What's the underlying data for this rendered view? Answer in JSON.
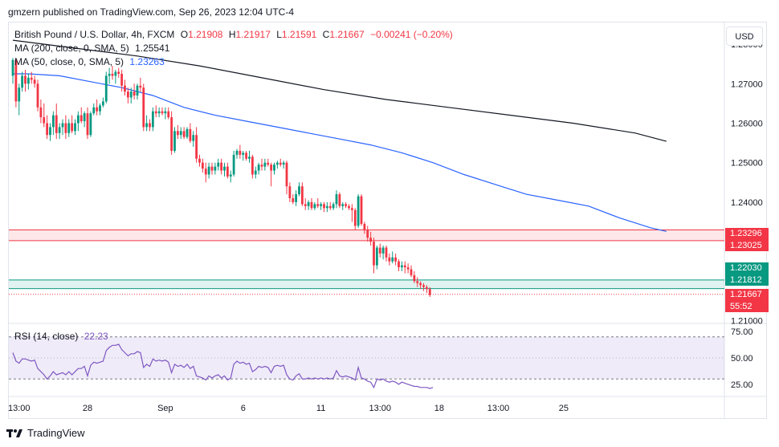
{
  "header": {
    "publisher": "gmzern published on TradingView.com, Sep 26, 2023 12:04 UTC-4"
  },
  "legend": {
    "symbol": "British Pound / U.S. Dollar, 4h, FXCM",
    "o_label": "O",
    "o_value": "1.21908",
    "h_label": "H",
    "h_value": "1.21917",
    "l_label": "L",
    "l_value": "1.21591",
    "c_label": "C",
    "c_value": "1.21667",
    "change": "−0.00241 (−0.20%)",
    "ma200_label": "MA (200, close, 0, SMA, 5)",
    "ma200_value": "1.25541",
    "ma50_label": "MA (50, close, 0, SMA, 5)",
    "ma50_value": "1.23263",
    "rsi_label": "RSI (14, close)",
    "rsi_value": "22.23"
  },
  "toolbar": {
    "currency": "USD"
  },
  "price_tags": {
    "zone_top_upper": "1.23296",
    "zone_top_lower": "1.23025",
    "zone_bottom_upper": "1.22030",
    "zone_bottom_lower": "1.21812",
    "last_price": "1.21667",
    "countdown": "55:52"
  },
  "footer": {
    "brand": "TradingView"
  },
  "colors": {
    "up": "#089981",
    "down": "#f23645",
    "ma200": "#131722",
    "ma50": "#2962ff",
    "rsi": "#7e57c2",
    "rsi_band": "#7e57c2",
    "zone_red": "#f23645",
    "zone_green": "#089981"
  },
  "chart_data": [
    {
      "type": "candlestick",
      "title": "British Pound / U.S. Dollar, 4h, FXCM",
      "y_ticks": [
        "1.28000",
        "1.27000",
        "1.26000",
        "1.25000",
        "1.24000",
        "1.21000"
      ],
      "y_tick_values": [
        1.28,
        1.27,
        1.26,
        1.25,
        1.24,
        1.21
      ],
      "ylim": [
        1.2095,
        1.2855
      ],
      "x_ticks": [
        "13:00",
        "28",
        "Sep",
        "6",
        "11",
        "13:00",
        "18",
        "13:00",
        "25"
      ],
      "x_tick_index": [
        2,
        24,
        49,
        74,
        99,
        118,
        137,
        156,
        177
      ],
      "ohlc": [
        [
          1.272,
          1.2765,
          1.27,
          1.276
        ],
        [
          1.276,
          1.2765,
          1.264,
          1.2655
        ],
        [
          1.2655,
          1.27,
          1.262,
          1.269
        ],
        [
          1.269,
          1.273,
          1.268,
          1.272
        ],
        [
          1.272,
          1.2735,
          1.268,
          1.27
        ],
        [
          1.27,
          1.2725,
          1.2685,
          1.2715
        ],
        [
          1.2715,
          1.273,
          1.27,
          1.271
        ],
        [
          1.271,
          1.272,
          1.269,
          1.27
        ],
        [
          1.27,
          1.271,
          1.263,
          1.264
        ],
        [
          1.264,
          1.266,
          1.26,
          1.2615
        ],
        [
          1.2615,
          1.265,
          1.259,
          1.26
        ],
        [
          1.26,
          1.262,
          1.256,
          1.257
        ],
        [
          1.257,
          1.26,
          1.2555,
          1.259
        ],
        [
          1.259,
          1.263,
          1.257,
          1.262
        ],
        [
          1.262,
          1.265,
          1.256,
          1.2575
        ],
        [
          1.2575,
          1.26,
          1.256,
          1.259
        ],
        [
          1.259,
          1.261,
          1.257,
          1.26
        ],
        [
          1.26,
          1.262,
          1.256,
          1.2575
        ],
        [
          1.2575,
          1.261,
          1.2565,
          1.26
        ],
        [
          1.26,
          1.262,
          1.2575,
          1.258
        ],
        [
          1.258,
          1.261,
          1.257,
          1.26
        ],
        [
          1.26,
          1.263,
          1.258,
          1.262
        ],
        [
          1.262,
          1.264,
          1.26,
          1.2605
        ],
        [
          1.2605,
          1.263,
          1.259,
          1.2625
        ],
        [
          1.2625,
          1.264,
          1.256,
          1.257
        ],
        [
          1.257,
          1.263,
          1.2565,
          1.2625
        ],
        [
          1.2625,
          1.265,
          1.262,
          1.264
        ],
        [
          1.264,
          1.266,
          1.262,
          1.263
        ],
        [
          1.263,
          1.265,
          1.262,
          1.2645
        ],
        [
          1.2645,
          1.2665,
          1.264,
          1.2655
        ],
        [
          1.2655,
          1.273,
          1.265,
          1.272
        ],
        [
          1.272,
          1.274,
          1.27,
          1.2725
        ],
        [
          1.2725,
          1.2745,
          1.271,
          1.272
        ],
        [
          1.272,
          1.2735,
          1.27,
          1.273
        ],
        [
          1.273,
          1.274,
          1.2715,
          1.2725
        ],
        [
          1.2725,
          1.2735,
          1.268,
          1.2695
        ],
        [
          1.2695,
          1.271,
          1.267,
          1.268
        ],
        [
          1.268,
          1.269,
          1.265,
          1.2665
        ],
        [
          1.2665,
          1.269,
          1.265,
          1.268
        ],
        [
          1.268,
          1.27,
          1.266,
          1.267
        ],
        [
          1.267,
          1.27,
          1.266,
          1.2695
        ],
        [
          1.2695,
          1.2715,
          1.268,
          1.269
        ],
        [
          1.269,
          1.27,
          1.258,
          1.259
        ],
        [
          1.259,
          1.262,
          1.258,
          1.26
        ],
        [
          1.26,
          1.261,
          1.258,
          1.259
        ],
        [
          1.259,
          1.264,
          1.258,
          1.263
        ],
        [
          1.263,
          1.2645,
          1.2615,
          1.2625
        ],
        [
          1.2625,
          1.264,
          1.2615,
          1.263
        ],
        [
          1.263,
          1.264,
          1.262,
          1.2625
        ],
        [
          1.2625,
          1.264,
          1.261,
          1.263
        ],
        [
          1.263,
          1.264,
          1.261,
          1.2615
        ],
        [
          1.2615,
          1.263,
          1.252,
          1.253
        ],
        [
          1.253,
          1.259,
          1.2525,
          1.258
        ],
        [
          1.258,
          1.2595,
          1.256,
          1.257
        ],
        [
          1.257,
          1.259,
          1.256,
          1.258
        ],
        [
          1.258,
          1.259,
          1.256,
          1.2565
        ],
        [
          1.2565,
          1.259,
          1.256,
          1.2585
        ],
        [
          1.2585,
          1.26,
          1.255,
          1.2555
        ],
        [
          1.2555,
          1.258,
          1.254,
          1.257
        ],
        [
          1.257,
          1.259,
          1.25,
          1.251
        ],
        [
          1.251,
          1.252,
          1.249,
          1.25
        ],
        [
          1.25,
          1.251,
          1.2475,
          1.2485
        ],
        [
          1.2485,
          1.25,
          1.245,
          1.247
        ],
        [
          1.247,
          1.25,
          1.246,
          1.249
        ],
        [
          1.249,
          1.25,
          1.247,
          1.248
        ],
        [
          1.248,
          1.25,
          1.247,
          1.249
        ],
        [
          1.249,
          1.251,
          1.248,
          1.25
        ],
        [
          1.25,
          1.251,
          1.247,
          1.248
        ],
        [
          1.248,
          1.25,
          1.2465,
          1.249
        ],
        [
          1.249,
          1.25,
          1.246,
          1.2465
        ],
        [
          1.2465,
          1.248,
          1.245,
          1.247
        ],
        [
          1.247,
          1.253,
          1.2465,
          1.252
        ],
        [
          1.252,
          1.2535,
          1.251,
          1.253
        ],
        [
          1.253,
          1.2545,
          1.251,
          1.252
        ],
        [
          1.252,
          1.253,
          1.2505,
          1.2525
        ],
        [
          1.2525,
          1.253,
          1.2505,
          1.251
        ],
        [
          1.251,
          1.253,
          1.25,
          1.2515
        ],
        [
          1.2515,
          1.252,
          1.246,
          1.247
        ],
        [
          1.247,
          1.249,
          1.246,
          1.248
        ],
        [
          1.248,
          1.25,
          1.247,
          1.2495
        ],
        [
          1.2495,
          1.251,
          1.248,
          1.249
        ],
        [
          1.249,
          1.251,
          1.248,
          1.25
        ],
        [
          1.25,
          1.251,
          1.249,
          1.2495
        ],
        [
          1.2495,
          1.25,
          1.244,
          1.248
        ],
        [
          1.248,
          1.25,
          1.247,
          1.2495
        ],
        [
          1.2495,
          1.2505,
          1.2485,
          1.25
        ],
        [
          1.25,
          1.251,
          1.249,
          1.2495
        ],
        [
          1.2495,
          1.2505,
          1.2485,
          1.25
        ],
        [
          1.25,
          1.2505,
          1.242,
          1.244
        ],
        [
          1.244,
          1.245,
          1.24,
          1.241
        ],
        [
          1.241,
          1.242,
          1.2395,
          1.24
        ],
        [
          1.24,
          1.243,
          1.239,
          1.242
        ],
        [
          1.242,
          1.245,
          1.2415,
          1.244
        ],
        [
          1.244,
          1.245,
          1.239,
          1.2395
        ],
        [
          1.2395,
          1.241,
          1.238,
          1.239
        ],
        [
          1.239,
          1.2405,
          1.238,
          1.24
        ],
        [
          1.24,
          1.241,
          1.238,
          1.2385
        ],
        [
          1.2385,
          1.24,
          1.238,
          1.2395
        ],
        [
          1.2395,
          1.241,
          1.2385,
          1.239
        ],
        [
          1.239,
          1.24,
          1.238,
          1.2395
        ],
        [
          1.2395,
          1.24,
          1.2375,
          1.2385
        ],
        [
          1.2385,
          1.24,
          1.2375,
          1.239
        ],
        [
          1.239,
          1.24,
          1.238,
          1.2385
        ],
        [
          1.2385,
          1.24,
          1.238,
          1.2395
        ],
        [
          1.2395,
          1.243,
          1.2385,
          1.242
        ],
        [
          1.242,
          1.2425,
          1.2385,
          1.239
        ],
        [
          1.239,
          1.24,
          1.238,
          1.2395
        ],
        [
          1.2395,
          1.24,
          1.2385,
          1.239
        ],
        [
          1.239,
          1.2395,
          1.238,
          1.2385
        ],
        [
          1.2385,
          1.2395,
          1.235,
          1.238
        ],
        [
          1.238,
          1.2385,
          1.233,
          1.234
        ],
        [
          1.234,
          1.242,
          1.2335,
          1.2415
        ],
        [
          1.2415,
          1.242,
          1.234,
          1.2345
        ],
        [
          1.2345,
          1.235,
          1.232,
          1.233
        ],
        [
          1.233,
          1.234,
          1.23,
          1.231
        ],
        [
          1.231,
          1.2325,
          1.229,
          1.23
        ],
        [
          1.23,
          1.231,
          1.222,
          1.224
        ],
        [
          1.224,
          1.229,
          1.223,
          1.2285
        ],
        [
          1.2285,
          1.2295,
          1.226,
          1.227
        ],
        [
          1.227,
          1.229,
          1.2255,
          1.2285
        ],
        [
          1.2285,
          1.229,
          1.225,
          1.226
        ],
        [
          1.226,
          1.227,
          1.224,
          1.225
        ],
        [
          1.225,
          1.2275,
          1.2245,
          1.226
        ],
        [
          1.226,
          1.227,
          1.224,
          1.225
        ],
        [
          1.225,
          1.2255,
          1.2225,
          1.2235
        ],
        [
          1.2235,
          1.225,
          1.2225,
          1.224
        ],
        [
          1.224,
          1.225,
          1.222,
          1.2235
        ],
        [
          1.2235,
          1.2245,
          1.222,
          1.223
        ],
        [
          1.223,
          1.224,
          1.221,
          1.2215
        ],
        [
          1.2215,
          1.2225,
          1.2195,
          1.22
        ],
        [
          1.22,
          1.221,
          1.2185,
          1.2195
        ],
        [
          1.2195,
          1.22,
          1.218,
          1.219
        ],
        [
          1.219,
          1.2195,
          1.2175,
          1.2185
        ],
        [
          1.2185,
          1.219,
          1.217,
          1.218
        ],
        [
          1.218,
          1.2185,
          1.216,
          1.2165
        ]
      ],
      "ma200": [
        [
          0,
          1.281
        ],
        [
          20,
          1.279
        ],
        [
          40,
          1.277
        ],
        [
          60,
          1.2745
        ],
        [
          80,
          1.2715
        ],
        [
          100,
          1.2685
        ],
        [
          120,
          1.266
        ],
        [
          140,
          1.264
        ],
        [
          160,
          1.262
        ],
        [
          180,
          1.26
        ],
        [
          200,
          1.2575
        ],
        [
          210,
          1.2554
        ]
      ],
      "ma50": [
        [
          0,
          1.2725
        ],
        [
          5,
          1.2725
        ],
        [
          15,
          1.272
        ],
        [
          25,
          1.2705
        ],
        [
          35,
          1.269
        ],
        [
          45,
          1.267
        ],
        [
          55,
          1.264
        ],
        [
          65,
          1.262
        ],
        [
          75,
          1.2605
        ],
        [
          85,
          1.259
        ],
        [
          95,
          1.2575
        ],
        [
          105,
          1.256
        ],
        [
          115,
          1.2545
        ],
        [
          125,
          1.2525
        ],
        [
          135,
          1.25
        ],
        [
          145,
          1.247
        ],
        [
          155,
          1.2445
        ],
        [
          165,
          1.242
        ],
        [
          175,
          1.2405
        ],
        [
          185,
          1.239
        ],
        [
          195,
          1.236
        ],
        [
          205,
          1.2335
        ],
        [
          210,
          1.2326
        ]
      ],
      "zones": [
        {
          "name": "resistance",
          "upper": 1.23296,
          "lower": 1.23025,
          "color": "#f23645"
        },
        {
          "name": "support",
          "upper": 1.2203,
          "lower": 1.21812,
          "color": "#089981"
        }
      ],
      "last_price": 1.21667
    },
    {
      "type": "line",
      "title": "RSI (14, close)",
      "y_ticks": [
        "75.00",
        "50.00",
        "25.00"
      ],
      "y_tick_values": [
        75,
        50,
        25
      ],
      "ylim": [
        15,
        82
      ],
      "band": [
        30,
        70
      ],
      "values": [
        55,
        47,
        45,
        49,
        49,
        48,
        47,
        48,
        40,
        37,
        34,
        30,
        33,
        37,
        34,
        35,
        36,
        34,
        37,
        34,
        37,
        40,
        40,
        42,
        33,
        43,
        46,
        45,
        46,
        47,
        57,
        60,
        62,
        62,
        63,
        58,
        55,
        52,
        54,
        54,
        56,
        55,
        41,
        44,
        42,
        49,
        47,
        48,
        47,
        48,
        46,
        36,
        44,
        42,
        43,
        41,
        44,
        40,
        42,
        33,
        32,
        31,
        29,
        33,
        31,
        33,
        34,
        31,
        33,
        29,
        31,
        44,
        47,
        45,
        46,
        44,
        45,
        37,
        39,
        42,
        41,
        42,
        41,
        36,
        42,
        43,
        42,
        43,
        34,
        30,
        29,
        33,
        35,
        30,
        30,
        31,
        30,
        31,
        30,
        31,
        30,
        31,
        30,
        31,
        38,
        33,
        32,
        33,
        32,
        31,
        29,
        41,
        31,
        30,
        28,
        27,
        22,
        30,
        29,
        30,
        28,
        27,
        28,
        27,
        25,
        27,
        26,
        25,
        24,
        23,
        23,
        22,
        22,
        22,
        21,
        22
      ]
    }
  ]
}
